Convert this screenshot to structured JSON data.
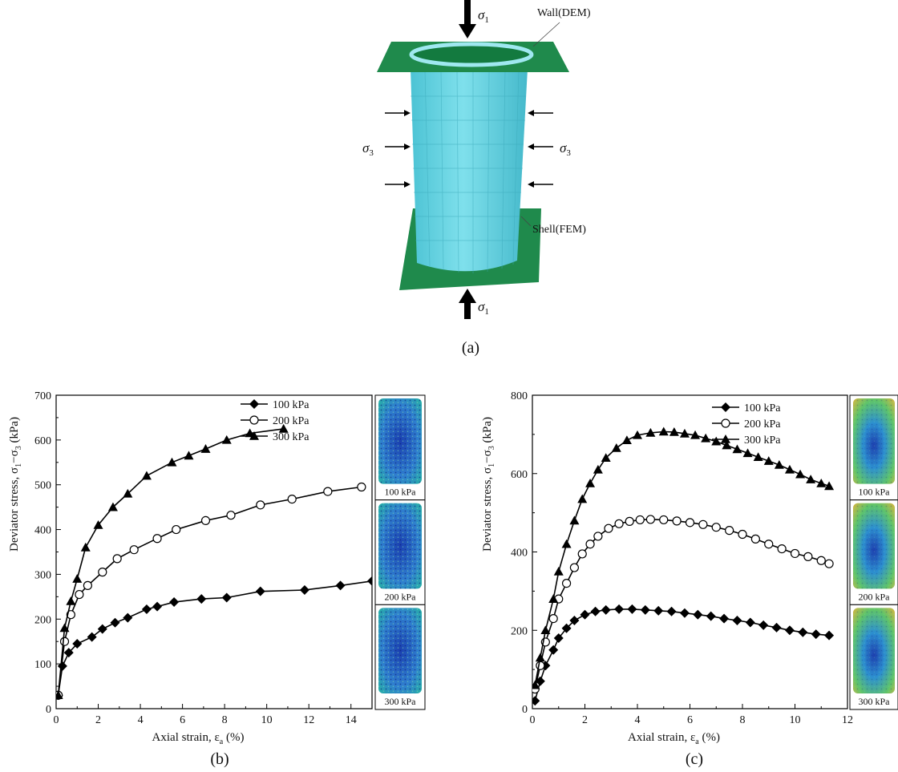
{
  "figure_a": {
    "panel_label": "(a)",
    "wall_label": "Wall(DEM)",
    "shell_label": "Shell(FEM)",
    "sigma1_label": "σ",
    "sigma1_sub": "1",
    "sigma3_label": "σ",
    "sigma3_sub": "3",
    "colors": {
      "plate": "#1f8a4c",
      "cylinder": "#5fd0df",
      "ring": "#9fe8f0"
    }
  },
  "chart_data": [
    {
      "type": "line",
      "panel_label": "(b)",
      "xlabel": "Axial strain, ε",
      "xlabel_sub": "a",
      "xlabel_unit": " (%)",
      "ylabel": "Deviator stress, σ",
      "ylabel_sub1": "1",
      "ylabel_mid": "−σ",
      "ylabel_sub2": "3",
      "ylabel_unit": " (kPa)",
      "xlim": [
        0,
        15
      ],
      "ylim": [
        0,
        700
      ],
      "xticks": [
        "0",
        "2",
        "4",
        "6",
        "8",
        "10",
        "12",
        "14"
      ],
      "xtick_values": [
        0,
        2,
        4,
        6,
        8,
        10,
        12,
        14
      ],
      "yticks": [
        "0",
        "100",
        "200",
        "300",
        "400",
        "500",
        "600",
        "700"
      ],
      "ytick_values": [
        0,
        100,
        200,
        300,
        400,
        500,
        600,
        700
      ],
      "grid": false,
      "legend_position": "top-right",
      "series": [
        {
          "name": "100 kPa",
          "marker": "diamond",
          "x": [
            0.1,
            0.3,
            0.6,
            1.0,
            1.7,
            2.2,
            2.8,
            3.4,
            4.3,
            4.8,
            5.6,
            6.9,
            8.1,
            9.7,
            11.8,
            13.5,
            15.0
          ],
          "y": [
            30,
            95,
            125,
            145,
            160,
            178,
            192,
            203,
            222,
            228,
            238,
            245,
            248,
            262,
            265,
            275,
            285
          ]
        },
        {
          "name": "200 kPa",
          "marker": "circle",
          "x": [
            0.1,
            0.4,
            0.7,
            1.1,
            1.5,
            2.2,
            2.9,
            3.7,
            4.8,
            5.7,
            7.1,
            8.3,
            9.7,
            11.2,
            12.9,
            14.5
          ],
          "y": [
            30,
            150,
            210,
            255,
            275,
            305,
            335,
            355,
            380,
            400,
            420,
            432,
            455,
            468,
            485,
            495
          ]
        },
        {
          "name": "300 kPa",
          "marker": "triangle",
          "x": [
            0.1,
            0.4,
            0.7,
            1.0,
            1.4,
            2.0,
            2.7,
            3.4,
            4.3,
            5.5,
            6.3,
            7.1,
            8.1,
            9.2,
            10.8
          ],
          "y": [
            30,
            180,
            240,
            290,
            360,
            410,
            450,
            480,
            520,
            550,
            565,
            580,
            600,
            615,
            625
          ]
        }
      ],
      "insets": [
        {
          "label": "100 kPa"
        },
        {
          "label": "200 kPa"
        },
        {
          "label": "300 kPa"
        }
      ]
    },
    {
      "type": "line",
      "panel_label": "(c)",
      "xlabel": "Axial strain, ε",
      "xlabel_sub": "a",
      "xlabel_unit": " (%)",
      "ylabel": "Deviator stress, σ",
      "ylabel_sub1": "1",
      "ylabel_mid": "−σ",
      "ylabel_sub2": "3",
      "ylabel_unit": " (kPa)",
      "xlim": [
        0,
        12
      ],
      "ylim": [
        0,
        800
      ],
      "xticks": [
        "0",
        "2",
        "4",
        "6",
        "8",
        "10",
        "12"
      ],
      "xtick_values": [
        0,
        2,
        4,
        6,
        8,
        10,
        12
      ],
      "yticks": [
        "0",
        "200",
        "400",
        "600",
        "800"
      ],
      "ytick_values": [
        0,
        200,
        400,
        600,
        800
      ],
      "grid": false,
      "legend_position": "top-right",
      "series": [
        {
          "name": "100 kPa",
          "marker": "diamond",
          "x": [
            0.1,
            0.3,
            0.5,
            0.8,
            1.0,
            1.3,
            1.6,
            2.0,
            2.4,
            2.8,
            3.3,
            3.8,
            4.3,
            4.8,
            5.3,
            5.8,
            6.3,
            6.8,
            7.3,
            7.8,
            8.3,
            8.8,
            9.3,
            9.8,
            10.3,
            10.8,
            11.3
          ],
          "y": [
            20,
            70,
            110,
            150,
            180,
            205,
            225,
            240,
            248,
            252,
            254,
            254,
            252,
            250,
            248,
            244,
            240,
            236,
            230,
            225,
            220,
            213,
            207,
            200,
            195,
            190,
            187
          ]
        },
        {
          "name": "200 kPa",
          "marker": "circle",
          "x": [
            0.1,
            0.3,
            0.5,
            0.8,
            1.0,
            1.3,
            1.6,
            1.9,
            2.2,
            2.5,
            2.9,
            3.3,
            3.7,
            4.1,
            4.5,
            5.0,
            5.5,
            6.0,
            6.5,
            7.0,
            7.5,
            8.0,
            8.5,
            9.0,
            9.5,
            10.0,
            10.5,
            11.0,
            11.3
          ],
          "y": [
            50,
            110,
            170,
            230,
            280,
            320,
            360,
            395,
            420,
            440,
            460,
            472,
            478,
            482,
            483,
            482,
            479,
            475,
            470,
            463,
            455,
            445,
            433,
            420,
            408,
            396,
            388,
            378,
            370
          ]
        },
        {
          "name": "300 kPa",
          "marker": "triangle",
          "x": [
            0.1,
            0.3,
            0.5,
            0.8,
            1.0,
            1.3,
            1.6,
            1.9,
            2.2,
            2.5,
            2.8,
            3.2,
            3.6,
            4.0,
            4.5,
            5.0,
            5.4,
            5.8,
            6.2,
            6.6,
            7.0,
            7.4,
            7.8,
            8.2,
            8.6,
            9.0,
            9.4,
            9.8,
            10.2,
            10.6,
            11.0,
            11.3
          ],
          "y": [
            60,
            130,
            200,
            280,
            350,
            420,
            480,
            535,
            575,
            610,
            640,
            665,
            685,
            698,
            704,
            707,
            706,
            702,
            698,
            690,
            682,
            672,
            662,
            652,
            642,
            632,
            622,
            610,
            598,
            585,
            575,
            568
          ]
        }
      ],
      "insets": [
        {
          "label": "100 kPa"
        },
        {
          "label": "200 kPa"
        },
        {
          "label": "300 kPa"
        }
      ]
    }
  ]
}
